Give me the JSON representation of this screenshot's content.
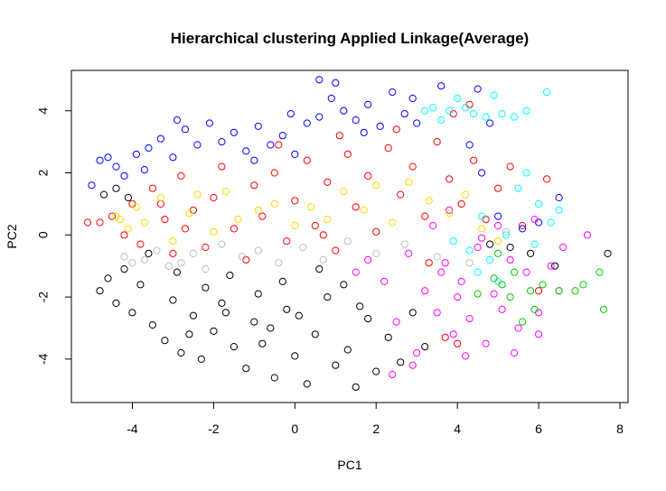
{
  "chart_data": {
    "type": "scatter",
    "title": "Hierarchical clustering Applied Linkage(Average)",
    "xlabel": "PC1",
    "ylabel": "PC2",
    "xlim": [
      -5.5,
      8.2
    ],
    "ylim": [
      -5.4,
      5.3
    ],
    "xticks": [
      -4,
      -2,
      0,
      2,
      4,
      6,
      8
    ],
    "yticks": [
      -4,
      -2,
      0,
      2,
      4
    ],
    "grid": false,
    "legend": "none",
    "marker": "open-circle",
    "series": [
      {
        "color": "#000000",
        "values": [
          [
            -4.8,
            -1.8
          ],
          [
            -4.6,
            -1.4
          ],
          [
            -4.4,
            -2.2
          ],
          [
            -4.2,
            -1.1
          ],
          [
            -4.0,
            -2.5
          ],
          [
            -3.8,
            -1.6
          ],
          [
            -3.5,
            -2.9
          ],
          [
            -3.2,
            -3.4
          ],
          [
            -3.0,
            -2.1
          ],
          [
            -2.8,
            -3.8
          ],
          [
            -2.5,
            -2.6
          ],
          [
            -2.3,
            -4.0
          ],
          [
            -2.0,
            -3.1
          ],
          [
            -1.8,
            -2.2
          ],
          [
            -1.5,
            -3.6
          ],
          [
            -1.2,
            -4.3
          ],
          [
            -1.0,
            -2.8
          ],
          [
            -0.8,
            -3.5
          ],
          [
            -0.5,
            -4.6
          ],
          [
            -0.2,
            -2.4
          ],
          [
            0.0,
            -3.9
          ],
          [
            0.3,
            -4.8
          ],
          [
            0.5,
            -3.2
          ],
          [
            0.8,
            -2.0
          ],
          [
            1.0,
            -4.2
          ],
          [
            1.3,
            -3.7
          ],
          [
            1.5,
            -4.9
          ],
          [
            1.8,
            -2.7
          ],
          [
            2.0,
            -4.4
          ],
          [
            2.3,
            -3.3
          ],
          [
            2.6,
            -4.1
          ],
          [
            2.9,
            -2.5
          ],
          [
            3.2,
            -3.6
          ],
          [
            -3.6,
            -0.6
          ],
          [
            -2.9,
            -1.2
          ],
          [
            -2.2,
            -1.7
          ],
          [
            -1.6,
            -1.3
          ],
          [
            -0.9,
            -1.9
          ],
          [
            -0.3,
            -1.5
          ],
          [
            0.6,
            -1.1
          ],
          [
            1.2,
            -1.6
          ],
          [
            4.8,
            -0.3
          ],
          [
            5.3,
            -0.4
          ],
          [
            5.8,
            -0.6
          ],
          [
            6.4,
            -1.0
          ],
          [
            7.7,
            -0.6
          ],
          [
            -4.7,
            1.3
          ],
          [
            -4.4,
            1.5
          ],
          [
            -4.1,
            1.2
          ],
          [
            -1.7,
            -2.5
          ],
          [
            -0.6,
            -3.0
          ],
          [
            0.1,
            -2.6
          ],
          [
            -2.6,
            -3.2
          ],
          [
            1.6,
            -2.3
          ]
        ]
      },
      {
        "color": "#ff0000",
        "values": [
          [
            -5.1,
            0.4
          ],
          [
            -4.8,
            0.4
          ],
          [
            -4.5,
            0.6
          ],
          [
            -4.2,
            0.0
          ],
          [
            -4.0,
            1.0
          ],
          [
            -3.8,
            -0.3
          ],
          [
            -3.5,
            1.5
          ],
          [
            -3.2,
            0.5
          ],
          [
            -3.0,
            -0.6
          ],
          [
            -2.8,
            1.9
          ],
          [
            -2.5,
            0.8
          ],
          [
            -2.2,
            -0.4
          ],
          [
            -2.0,
            1.2
          ],
          [
            -1.8,
            2.2
          ],
          [
            -1.5,
            0.2
          ],
          [
            -1.2,
            -0.8
          ],
          [
            -1.0,
            1.6
          ],
          [
            -0.8,
            0.6
          ],
          [
            -0.5,
            2.0
          ],
          [
            -0.2,
            -0.2
          ],
          [
            0.0,
            1.1
          ],
          [
            0.3,
            2.4
          ],
          [
            0.5,
            0.3
          ],
          [
            0.8,
            1.7
          ],
          [
            1.0,
            -0.5
          ],
          [
            1.3,
            2.6
          ],
          [
            1.5,
            0.9
          ],
          [
            1.8,
            1.9
          ],
          [
            2.0,
            0.1
          ],
          [
            2.3,
            2.8
          ],
          [
            2.6,
            1.3
          ],
          [
            2.9,
            2.2
          ],
          [
            3.2,
            0.6
          ],
          [
            3.5,
            3.0
          ],
          [
            3.8,
            1.8
          ],
          [
            4.1,
            1.0
          ],
          [
            4.4,
            2.4
          ],
          [
            4.7,
            0.5
          ],
          [
            5.0,
            1.5
          ],
          [
            5.3,
            2.2
          ],
          [
            5.6,
            0.3
          ],
          [
            6.0,
            -1.8
          ],
          [
            6.2,
            1.8
          ],
          [
            4.0,
            -3.5
          ],
          [
            3.7,
            -3.3
          ],
          [
            4.3,
            4.2
          ],
          [
            3.9,
            3.9
          ],
          [
            1.1,
            3.2
          ],
          [
            -0.4,
            2.9
          ],
          [
            2.5,
            3.4
          ],
          [
            3.3,
            -0.9
          ],
          [
            0.7,
            0.0
          ],
          [
            -2.7,
            0.2
          ],
          [
            -3.3,
            1.0
          ]
        ]
      },
      {
        "color": "#0000ff",
        "values": [
          [
            -4.8,
            2.4
          ],
          [
            -4.6,
            2.5
          ],
          [
            -4.4,
            2.2
          ],
          [
            -4.2,
            1.9
          ],
          [
            -3.9,
            2.6
          ],
          [
            -3.6,
            2.8
          ],
          [
            -3.3,
            3.1
          ],
          [
            -3.0,
            2.5
          ],
          [
            -2.7,
            3.4
          ],
          [
            -2.4,
            2.9
          ],
          [
            -2.1,
            3.6
          ],
          [
            -1.8,
            3.0
          ],
          [
            -1.5,
            3.3
          ],
          [
            -1.2,
            2.7
          ],
          [
            -0.9,
            3.5
          ],
          [
            -0.6,
            2.9
          ],
          [
            -0.3,
            3.2
          ],
          [
            0.0,
            2.6
          ],
          [
            0.3,
            3.6
          ],
          [
            0.6,
            3.8
          ],
          [
            0.9,
            4.4
          ],
          [
            1.2,
            4.0
          ],
          [
            1.5,
            3.7
          ],
          [
            1.8,
            4.2
          ],
          [
            2.1,
            3.5
          ],
          [
            2.4,
            4.6
          ],
          [
            2.7,
            3.9
          ],
          [
            3.0,
            3.6
          ],
          [
            0.6,
            5.0
          ],
          [
            1.0,
            4.9
          ],
          [
            3.6,
            4.8
          ],
          [
            4.5,
            4.7
          ],
          [
            -5.0,
            1.6
          ],
          [
            4.3,
            2.9
          ],
          [
            4.6,
            2.0
          ],
          [
            5.0,
            0.6
          ],
          [
            5.6,
            0.2
          ],
          [
            6.0,
            0.4
          ],
          [
            6.5,
            1.2
          ],
          [
            4.8,
            3.6
          ],
          [
            2.9,
            4.4
          ],
          [
            -2.9,
            3.7
          ],
          [
            -0.1,
            3.9
          ],
          [
            1.7,
            3.3
          ],
          [
            -3.7,
            2.1
          ],
          [
            -1.0,
            2.4
          ]
        ]
      },
      {
        "color": "#ff00ff",
        "values": [
          [
            1.8,
            -0.8
          ],
          [
            2.2,
            -1.5
          ],
          [
            2.5,
            -2.8
          ],
          [
            2.8,
            -0.6
          ],
          [
            3.0,
            -3.8
          ],
          [
            3.2,
            -1.8
          ],
          [
            3.5,
            -2.5
          ],
          [
            3.7,
            -0.9
          ],
          [
            3.9,
            -3.2
          ],
          [
            4.1,
            -1.5
          ],
          [
            4.3,
            -2.7
          ],
          [
            4.5,
            -0.4
          ],
          [
            4.7,
            -3.5
          ],
          [
            4.9,
            -1.9
          ],
          [
            5.1,
            -2.4
          ],
          [
            5.3,
            -0.8
          ],
          [
            5.5,
            -3.0
          ],
          [
            5.7,
            -1.2
          ],
          [
            6.0,
            -2.5
          ],
          [
            6.3,
            -1.0
          ],
          [
            6.6,
            -0.4
          ],
          [
            7.2,
            0.0
          ],
          [
            6.0,
            -3.2
          ],
          [
            4.6,
            -0.1
          ],
          [
            3.4,
            0.3
          ],
          [
            2.9,
            -4.2
          ],
          [
            3.8,
            0.8
          ],
          [
            4.2,
            -3.9
          ],
          [
            5.9,
            0.5
          ],
          [
            5.0,
            0.3
          ],
          [
            2.4,
            -4.5
          ],
          [
            3.6,
            -1.2
          ],
          [
            4.0,
            -2.0
          ],
          [
            1.5,
            -1.2
          ],
          [
            6.5,
            -1.8
          ],
          [
            5.4,
            -3.8
          ]
        ]
      },
      {
        "color": "#00ffff",
        "values": [
          [
            3.2,
            4.0
          ],
          [
            3.4,
            4.1
          ],
          [
            3.6,
            3.7
          ],
          [
            3.8,
            4.0
          ],
          [
            4.0,
            4.4
          ],
          [
            4.2,
            4.1
          ],
          [
            4.4,
            3.9
          ],
          [
            4.7,
            3.8
          ],
          [
            4.9,
            4.5
          ],
          [
            5.1,
            3.9
          ],
          [
            5.4,
            3.8
          ],
          [
            5.7,
            4.0
          ],
          [
            6.2,
            4.6
          ],
          [
            5.5,
            1.5
          ],
          [
            5.7,
            2.0
          ],
          [
            6.0,
            1.0
          ],
          [
            6.3,
            0.4
          ],
          [
            6.5,
            0.8
          ],
          [
            5.2,
            0.0
          ],
          [
            4.8,
            -0.8
          ],
          [
            4.5,
            -1.2
          ],
          [
            4.3,
            -0.5
          ],
          [
            5.0,
            -1.5
          ],
          [
            3.9,
            -0.2
          ],
          [
            4.6,
            0.6
          ],
          [
            5.9,
            -0.3
          ]
        ]
      },
      {
        "color": "#00cd00",
        "values": [
          [
            4.5,
            -1.9
          ],
          [
            4.9,
            -1.4
          ],
          [
            5.1,
            -1.6
          ],
          [
            5.4,
            -1.2
          ],
          [
            5.6,
            -2.8
          ],
          [
            5.8,
            -1.8
          ],
          [
            6.1,
            -1.6
          ],
          [
            6.5,
            -1.8
          ],
          [
            6.9,
            -1.8
          ],
          [
            7.1,
            -1.6
          ],
          [
            7.5,
            -1.2
          ],
          [
            7.6,
            -2.4
          ],
          [
            5.0,
            -0.6
          ],
          [
            5.3,
            -2.0
          ],
          [
            5.9,
            -2.4
          ]
        ]
      },
      {
        "color": "#ffd700",
        "values": [
          [
            -4.4,
            0.6
          ],
          [
            -4.3,
            0.5
          ],
          [
            -4.1,
            0.2
          ],
          [
            -3.9,
            0.9
          ],
          [
            -3.7,
            0.4
          ],
          [
            -3.3,
            1.2
          ],
          [
            -3.0,
            -0.2
          ],
          [
            -2.6,
            0.7
          ],
          [
            -2.4,
            1.3
          ],
          [
            -2.0,
            0.1
          ],
          [
            -1.7,
            1.4
          ],
          [
            -1.4,
            0.5
          ],
          [
            -0.9,
            0.8
          ],
          [
            -0.5,
            1.0
          ],
          [
            0.0,
            0.3
          ],
          [
            0.4,
            0.9
          ],
          [
            0.8,
            0.5
          ],
          [
            1.2,
            1.4
          ],
          [
            1.7,
            0.8
          ],
          [
            2.0,
            1.6
          ],
          [
            2.4,
            0.4
          ],
          [
            2.8,
            1.7
          ],
          [
            3.3,
            1.1
          ],
          [
            3.8,
            0.7
          ],
          [
            4.2,
            1.3
          ],
          [
            4.6,
            0.2
          ],
          [
            5.0,
            -0.2
          ]
        ]
      },
      {
        "color": "#bebebe",
        "values": [
          [
            -4.2,
            -0.7
          ],
          [
            -4.0,
            -0.9
          ],
          [
            -3.7,
            -0.8
          ],
          [
            -3.4,
            -0.5
          ],
          [
            -3.1,
            -1.0
          ],
          [
            -2.8,
            -0.9
          ],
          [
            -2.5,
            -0.6
          ],
          [
            -2.2,
            -1.1
          ],
          [
            -1.8,
            -0.3
          ],
          [
            -1.3,
            -0.7
          ],
          [
            -0.9,
            -0.5
          ],
          [
            -0.4,
            -0.9
          ],
          [
            0.2,
            -0.4
          ],
          [
            0.7,
            -0.8
          ],
          [
            1.3,
            -0.2
          ],
          [
            2.0,
            -0.6
          ],
          [
            2.7,
            -0.3
          ],
          [
            3.5,
            -0.7
          ],
          [
            4.3,
            -0.9
          ],
          [
            5.2,
            0.1
          ]
        ]
      }
    ]
  }
}
